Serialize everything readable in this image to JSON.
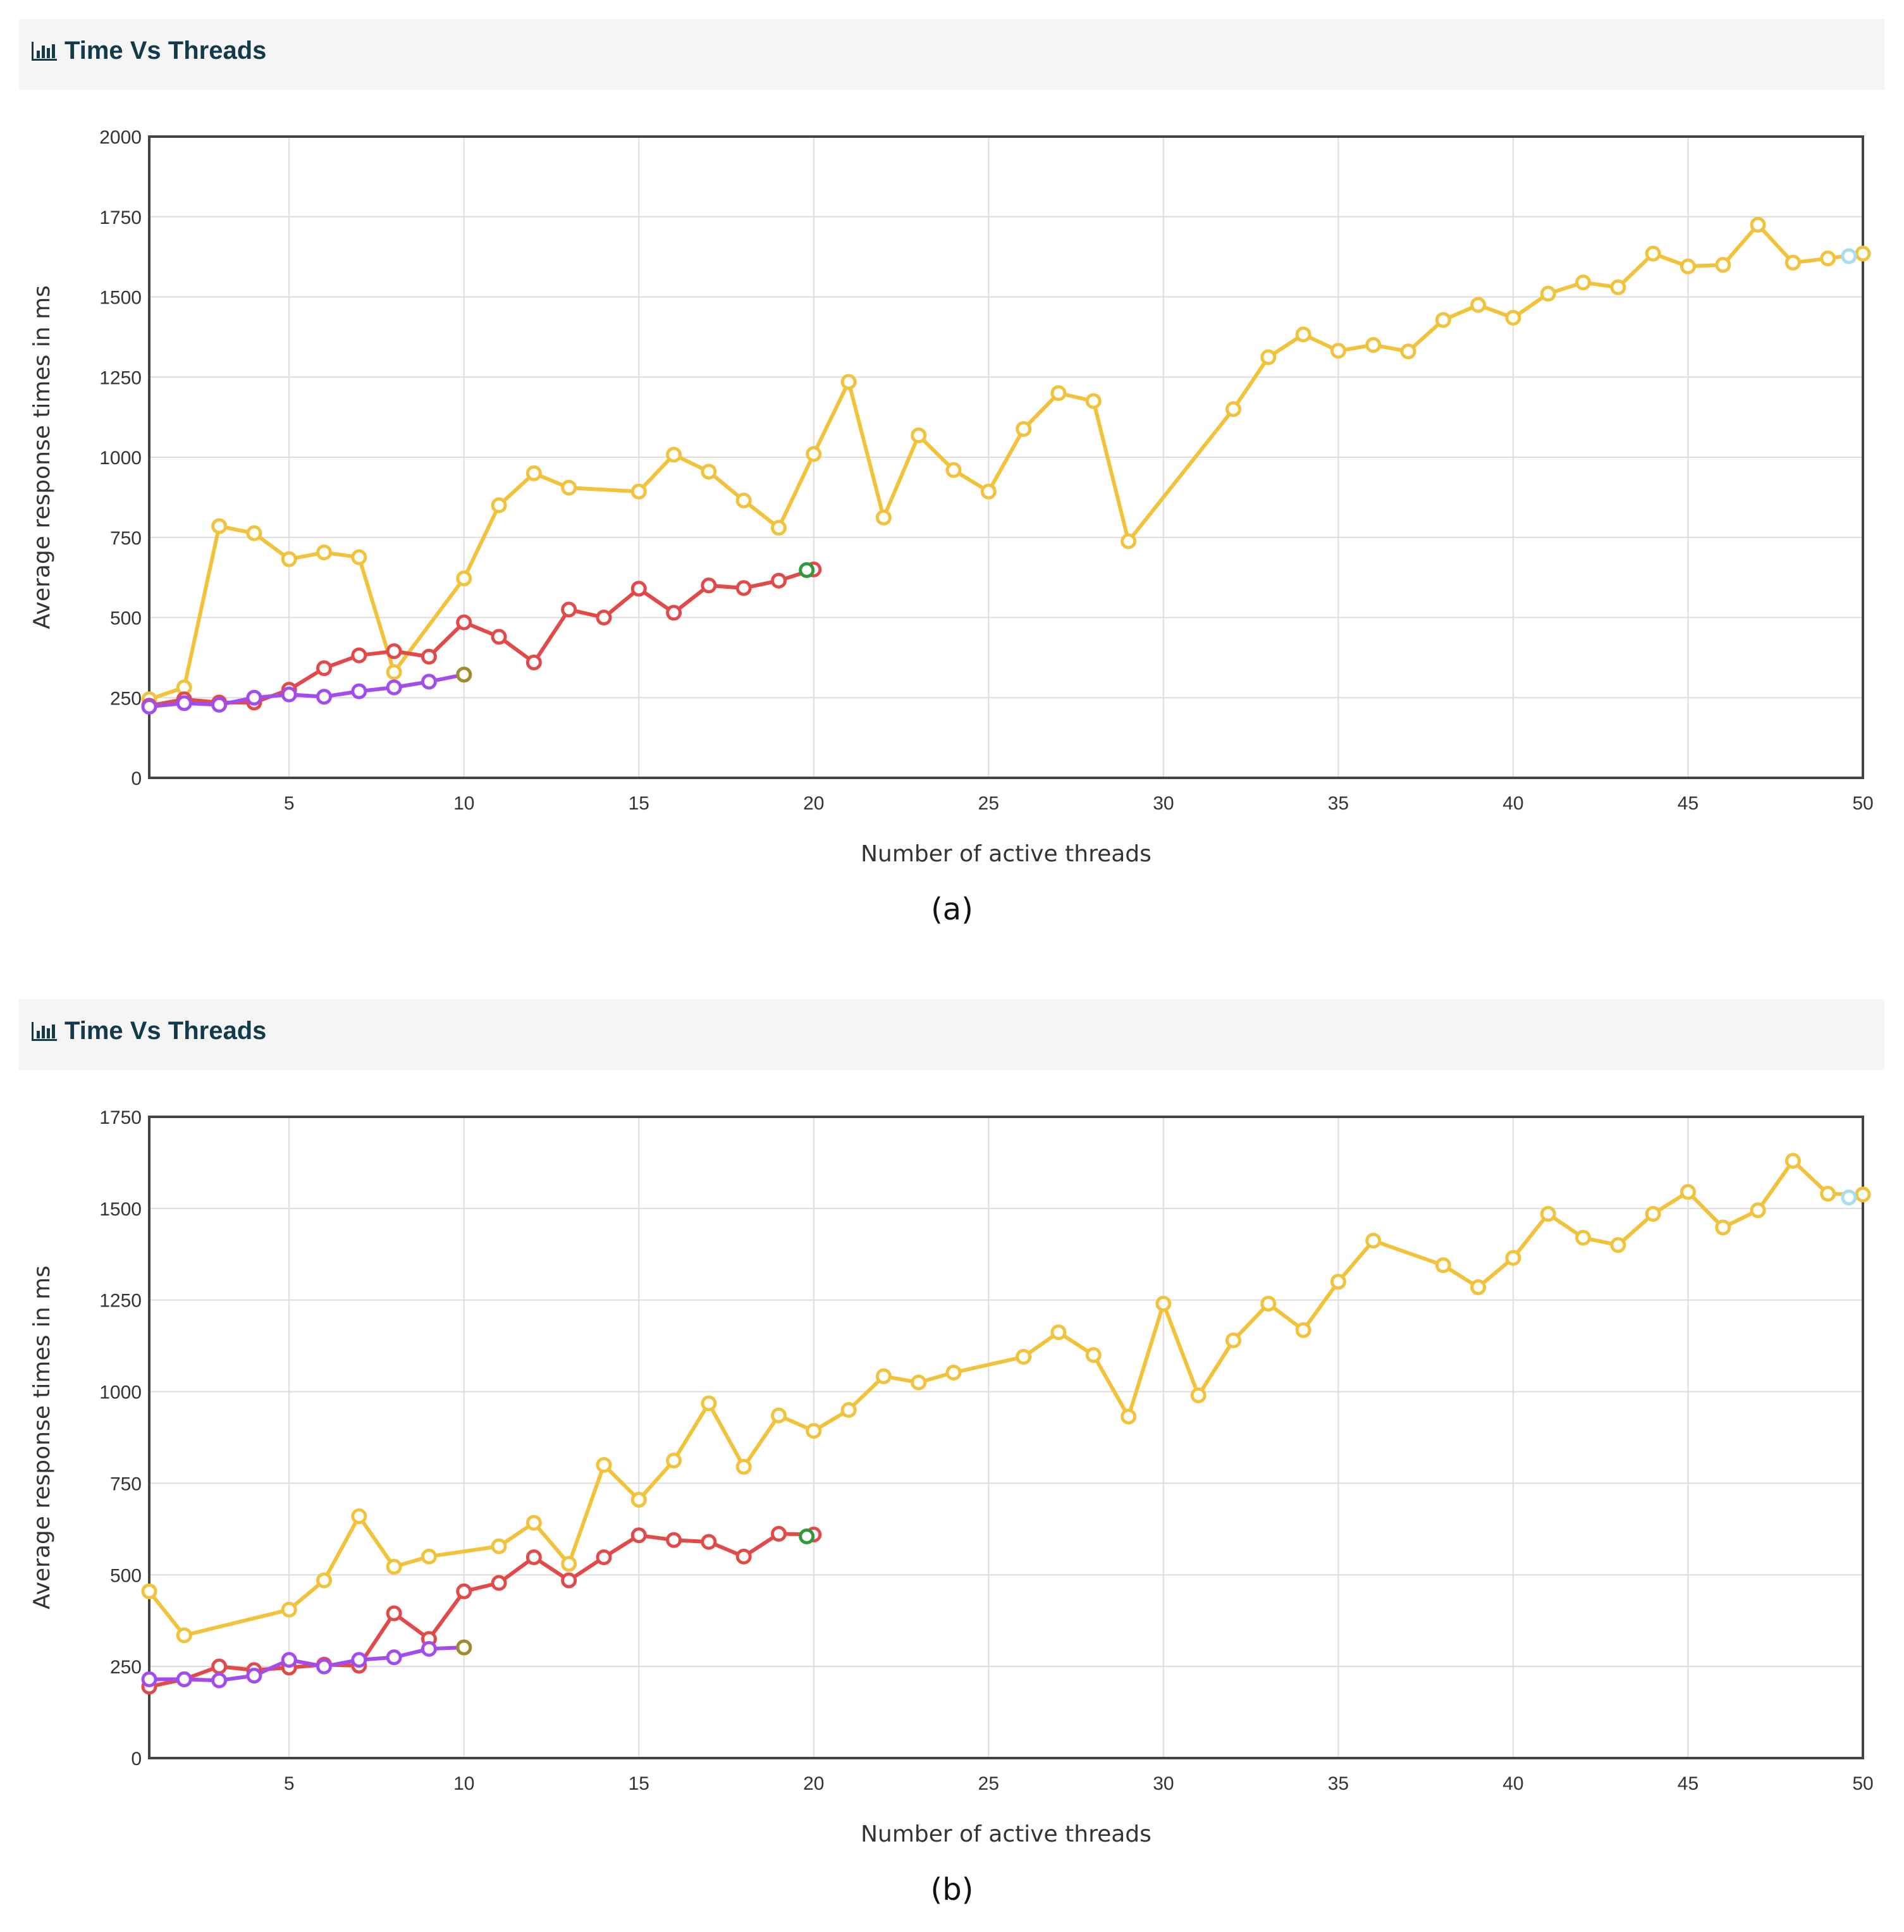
{
  "panels": [
    {
      "header": {
        "title": "Time Vs Threads",
        "icon": "bar-chart-icon"
      },
      "caption": "(a)"
    },
    {
      "header": {
        "title": "Time Vs Threads",
        "icon": "bar-chart-icon"
      },
      "caption": "(b)"
    }
  ],
  "colors": {
    "yellow": "#f2c23a",
    "red": "#e24a4a",
    "purple": "#a24cf0",
    "green": "#2e9b3a",
    "lightblue": "#a8dcf0",
    "olive": "#a28b2a",
    "axis": "#444444",
    "grid": "#dddddd"
  },
  "chart_data": [
    {
      "type": "line",
      "xlabel": "Number of active threads",
      "ylabel": "Average response times in ms",
      "xlim": [
        1,
        50
      ],
      "ylim": [
        0,
        2000
      ],
      "xticks": [
        5,
        10,
        15,
        20,
        25,
        30,
        35,
        40,
        45,
        50
      ],
      "yticks": [
        0,
        250,
        500,
        750,
        1000,
        1250,
        1500,
        1750,
        2000
      ],
      "grid": true,
      "series": [
        {
          "color": "#f2c23a",
          "points": [
            [
              1,
              245
            ],
            [
              2,
              282
            ],
            [
              3,
              785
            ],
            [
              4,
              763
            ],
            [
              5,
              682
            ],
            [
              6,
              703
            ],
            [
              7,
              688
            ],
            [
              8,
              330
            ],
            [
              10,
              622
            ],
            [
              11,
              850
            ],
            [
              12,
              950
            ],
            [
              13,
              905
            ],
            [
              15,
              893
            ],
            [
              16,
              1008
            ],
            [
              17,
              955
            ],
            [
              18,
              865
            ],
            [
              19,
              780
            ],
            [
              20,
              1010
            ],
            [
              21,
              1235
            ],
            [
              22,
              812
            ],
            [
              23,
              1068
            ],
            [
              24,
              960
            ],
            [
              25,
              893
            ],
            [
              26,
              1088
            ],
            [
              27,
              1200
            ],
            [
              28,
              1175
            ],
            [
              29,
              738
            ],
            [
              32,
              1150
            ],
            [
              33,
              1312
            ],
            [
              34,
              1383
            ],
            [
              35,
              1332
            ],
            [
              36,
              1350
            ],
            [
              37,
              1330
            ],
            [
              38,
              1428
            ],
            [
              39,
              1475
            ],
            [
              40,
              1435
            ],
            [
              41,
              1510
            ],
            [
              42,
              1545
            ],
            [
              43,
              1530
            ],
            [
              44,
              1635
            ],
            [
              45,
              1595
            ],
            [
              46,
              1600
            ],
            [
              47,
              1725
            ],
            [
              48,
              1607
            ],
            [
              49,
              1620
            ],
            [
              50,
              1635
            ]
          ],
          "end_marker": {
            "x": 49.6,
            "y": 1627,
            "color": "#a8dcf0"
          }
        },
        {
          "color": "#e24a4a",
          "points": [
            [
              1,
              225
            ],
            [
              2,
              245
            ],
            [
              3,
              235
            ],
            [
              4,
              235
            ],
            [
              5,
              275
            ],
            [
              6,
              342
            ],
            [
              7,
              382
            ],
            [
              8,
              395
            ],
            [
              9,
              378
            ],
            [
              10,
              485
            ],
            [
              11,
              440
            ],
            [
              12,
              360
            ],
            [
              13,
              525
            ],
            [
              14,
              500
            ],
            [
              15,
              590
            ],
            [
              16,
              515
            ],
            [
              17,
              600
            ],
            [
              18,
              592
            ],
            [
              19,
              615
            ],
            [
              20,
              650
            ]
          ],
          "end_marker": {
            "x": 19.8,
            "y": 648,
            "color": "#2e9b3a"
          }
        },
        {
          "color": "#a24cf0",
          "points": [
            [
              1,
              222
            ],
            [
              2,
              233
            ],
            [
              3,
              228
            ],
            [
              4,
              250
            ],
            [
              5,
              260
            ],
            [
              6,
              253
            ],
            [
              7,
              270
            ],
            [
              8,
              282
            ],
            [
              9,
              300
            ],
            [
              10,
              322
            ]
          ],
          "end_marker": {
            "x": 10,
            "y": 322,
            "color": "#a28b2a"
          }
        }
      ]
    },
    {
      "type": "line",
      "xlabel": "Number of active threads",
      "ylabel": "Average response times in ms",
      "xlim": [
        1,
        50
      ],
      "ylim": [
        0,
        1750
      ],
      "xticks": [
        5,
        10,
        15,
        20,
        25,
        30,
        35,
        40,
        45,
        50
      ],
      "yticks": [
        0,
        250,
        500,
        750,
        1000,
        1250,
        1500,
        1750
      ],
      "grid": true,
      "series": [
        {
          "color": "#f2c23a",
          "points": [
            [
              1,
              455
            ],
            [
              2,
              335
            ],
            [
              5,
              405
            ],
            [
              6,
              485
            ],
            [
              7,
              660
            ],
            [
              8,
              522
            ],
            [
              9,
              550
            ],
            [
              11,
              578
            ],
            [
              12,
              642
            ],
            [
              13,
              530
            ],
            [
              14,
              800
            ],
            [
              15,
              705
            ],
            [
              16,
              812
            ],
            [
              17,
              968
            ],
            [
              18,
              795
            ],
            [
              19,
              935
            ],
            [
              20,
              893
            ],
            [
              21,
              950
            ],
            [
              22,
              1042
            ],
            [
              23,
              1025
            ],
            [
              24,
              1052
            ],
            [
              26,
              1095
            ],
            [
              27,
              1162
            ],
            [
              28,
              1100
            ],
            [
              29,
              932
            ],
            [
              30,
              1240
            ],
            [
              31,
              990
            ],
            [
              32,
              1140
            ],
            [
              33,
              1240
            ],
            [
              34,
              1168
            ],
            [
              35,
              1300
            ],
            [
              36,
              1412
            ],
            [
              38,
              1345
            ],
            [
              39,
              1285
            ],
            [
              40,
              1365
            ],
            [
              41,
              1485
            ],
            [
              42,
              1420
            ],
            [
              43,
              1400
            ],
            [
              44,
              1485
            ],
            [
              45,
              1545
            ],
            [
              46,
              1448
            ],
            [
              47,
              1495
            ],
            [
              48,
              1630
            ],
            [
              49,
              1540
            ],
            [
              50,
              1538
            ]
          ],
          "end_marker": {
            "x": 49.6,
            "y": 1530,
            "color": "#a8dcf0"
          }
        },
        {
          "color": "#e24a4a",
          "points": [
            [
              1,
              195
            ],
            [
              2,
              215
            ],
            [
              3,
              250
            ],
            [
              4,
              240
            ],
            [
              5,
              247
            ],
            [
              6,
              255
            ],
            [
              7,
              252
            ],
            [
              8,
              395
            ],
            [
              9,
              325
            ],
            [
              10,
              455
            ],
            [
              11,
              478
            ],
            [
              12,
              548
            ],
            [
              13,
              485
            ],
            [
              14,
              548
            ],
            [
              15,
              608
            ],
            [
              16,
              595
            ],
            [
              17,
              590
            ],
            [
              18,
              550
            ],
            [
              19,
              612
            ],
            [
              20,
              610
            ]
          ],
          "end_marker": {
            "x": 19.8,
            "y": 605,
            "color": "#2e9b3a"
          }
        },
        {
          "color": "#a24cf0",
          "points": [
            [
              1,
              215
            ],
            [
              2,
              215
            ],
            [
              3,
              212
            ],
            [
              4,
              225
            ],
            [
              5,
              268
            ],
            [
              6,
              250
            ],
            [
              7,
              268
            ],
            [
              8,
              275
            ],
            [
              9,
              298
            ],
            [
              10,
              302
            ]
          ],
          "end_marker": {
            "x": 10,
            "y": 302,
            "color": "#a28b2a"
          }
        }
      ]
    }
  ]
}
